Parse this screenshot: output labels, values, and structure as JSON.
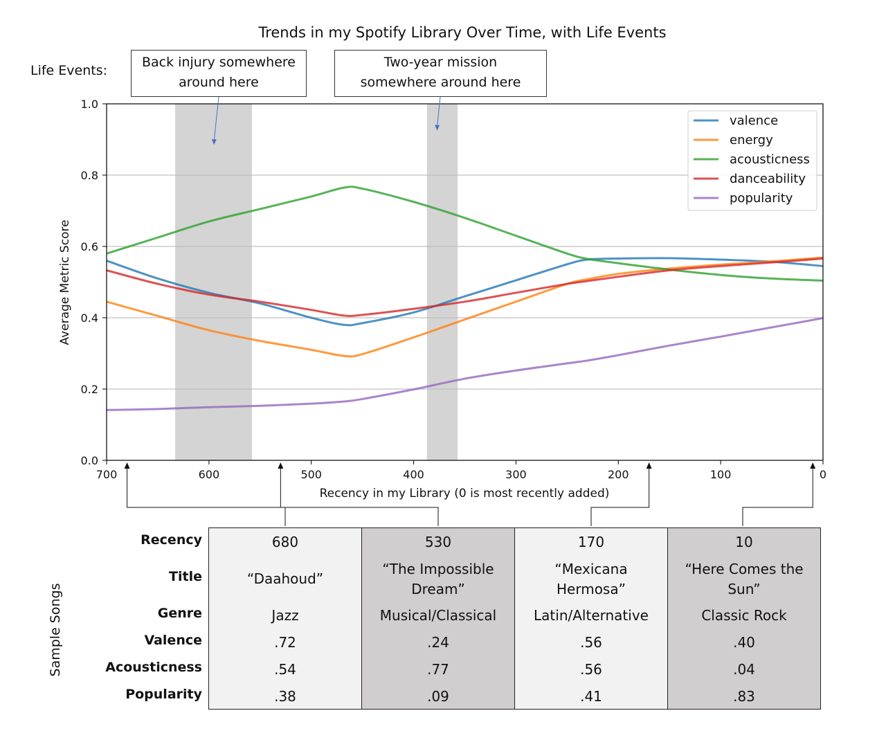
{
  "chart_data": {
    "type": "line",
    "title": "Trends in my Spotify Library Over Time, with Life Events",
    "xlabel": "Recency in my Library (0 is most recently added)",
    "ylabel": "Average Metric Score",
    "xlim": [
      700,
      0
    ],
    "ylim": [
      0.0,
      1.0
    ],
    "x_ticks": [
      "700",
      "600",
      "500",
      "400",
      "300",
      "200",
      "100",
      "0"
    ],
    "y_ticks": [
      "0.0",
      "0.2",
      "0.4",
      "0.6",
      "0.8",
      "1.0"
    ],
    "grid": "horizontal",
    "legend_position": "top-right",
    "x": [
      700,
      650,
      600,
      550,
      500,
      468,
      450,
      400,
      350,
      300,
      250,
      230,
      200,
      150,
      100,
      50,
      0
    ],
    "series": [
      {
        "name": "valence",
        "color": "#1f77b4",
        "values": [
          0.56,
          0.51,
          0.47,
          0.44,
          0.4,
          0.38,
          0.385,
          0.415,
          0.46,
          0.505,
          0.55,
          0.563,
          0.566,
          0.567,
          0.563,
          0.557,
          0.545
        ]
      },
      {
        "name": "energy",
        "color": "#ff7f0e",
        "values": [
          0.445,
          0.405,
          0.365,
          0.335,
          0.31,
          0.293,
          0.298,
          0.345,
          0.395,
          0.445,
          0.495,
          0.508,
          0.523,
          0.538,
          0.549,
          0.558,
          0.569
        ]
      },
      {
        "name": "acousticness",
        "color": "#2ca02c",
        "values": [
          0.58,
          0.625,
          0.67,
          0.705,
          0.74,
          0.765,
          0.762,
          0.725,
          0.68,
          0.63,
          0.58,
          0.565,
          0.553,
          0.535,
          0.52,
          0.51,
          0.504
        ]
      },
      {
        "name": "danceability",
        "color": "#d62728",
        "values": [
          0.533,
          0.495,
          0.465,
          0.445,
          0.422,
          0.406,
          0.408,
          0.425,
          0.445,
          0.47,
          0.495,
          0.503,
          0.515,
          0.533,
          0.545,
          0.555,
          0.566
        ]
      },
      {
        "name": "popularity",
        "color": "#9467bd",
        "values": [
          0.141,
          0.144,
          0.149,
          0.153,
          0.159,
          0.165,
          0.172,
          0.199,
          0.229,
          0.252,
          0.272,
          0.28,
          0.295,
          0.322,
          0.347,
          0.373,
          0.399
        ]
      }
    ],
    "shaded_regions": [
      {
        "x_from": 633,
        "x_to": 558
      },
      {
        "x_from": 387,
        "x_to": 357
      }
    ],
    "annotations": [
      {
        "text_line1": "Back injury somewhere",
        "text_line2": "around here",
        "x": 595,
        "y": 0.885
      },
      {
        "text_line1": "Two-year mission",
        "text_line2": "somewhere around here",
        "x": 377,
        "y": 0.925
      }
    ],
    "sample_markers": [
      680,
      530,
      170,
      10
    ]
  },
  "life_events_label": "Life Events:",
  "sample_songs": {
    "side_label": "Sample Songs",
    "row_labels": {
      "recency": "Recency",
      "title": "Title",
      "genre": "Genre",
      "valence": "Valence",
      "acousticness": "Acousticness",
      "popularity": "Popularity"
    },
    "songs": [
      {
        "recency": "680",
        "title": "“Daahoud”",
        "genre": "Jazz",
        "valence": ".72",
        "acousticness": ".54",
        "popularity": ".38"
      },
      {
        "recency": "530",
        "title": "“The Impossible Dream”",
        "genre": "Musical/Classical",
        "valence": ".24",
        "acousticness": ".77",
        "popularity": ".09"
      },
      {
        "recency": "170",
        "title": "“Mexicana Hermosa”",
        "genre": "Latin/Alternative",
        "valence": ".56",
        "acousticness": ".56",
        "popularity": ".41"
      },
      {
        "recency": "10",
        "title": "“Here Comes the Sun”",
        "genre": "Classic Rock",
        "valence": ".40",
        "acousticness": ".04",
        "popularity": ".83"
      }
    ]
  }
}
